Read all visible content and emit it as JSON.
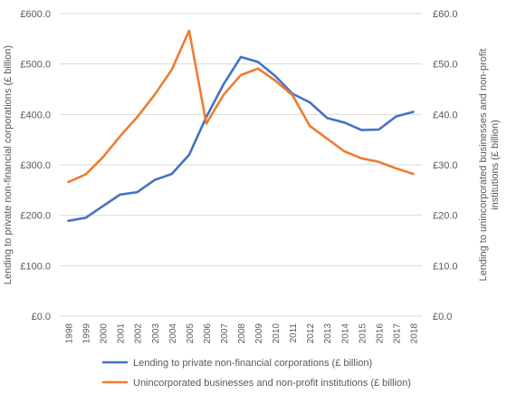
{
  "chart_data": {
    "type": "line",
    "title": "",
    "categories": [
      "1998",
      "1999",
      "2000",
      "2001",
      "2002",
      "2003",
      "2004",
      "2005",
      "2006",
      "2007",
      "2008",
      "2009",
      "2010",
      "2011",
      "2012",
      "2013",
      "2014",
      "2015",
      "2016",
      "2017",
      "2018"
    ],
    "y_left": {
      "label": "Lending to private non-financial corporations (£ billion)",
      "min": 0,
      "max": 600,
      "ticks": [
        0,
        100,
        200,
        300,
        400,
        500,
        600
      ],
      "tick_labels": [
        "£0.0",
        "£100.0",
        "£200.0",
        "£300.0",
        "£400.0",
        "£500.0",
        "£600.0"
      ]
    },
    "y_right": {
      "label": "Lending to unincorporated businesses and non-profit institutions (£ billion)",
      "min": 0,
      "max": 60,
      "ticks": [
        0,
        10,
        20,
        30,
        40,
        50,
        60
      ],
      "tick_labels": [
        "£0.0",
        "£10.0",
        "£20.0",
        "£30.0",
        "£40.0",
        "£50.0",
        "£60.0"
      ]
    },
    "series": [
      {
        "name": "Lending to private non-financial corporations (£ billion)",
        "axis": "left",
        "color": "#4472C4",
        "values": [
          189,
          195,
          218,
          241,
          246,
          270,
          282,
          320,
          395,
          460,
          514,
          504,
          476,
          441,
          424,
          393,
          384,
          369,
          370,
          396,
          405
        ]
      },
      {
        "name": "Unincorporated businesses and non-profit institutions (£ billion)",
        "axis": "right",
        "color": "#ED7D31",
        "values": [
          26.6,
          28.1,
          31.5,
          35.7,
          39.5,
          43.9,
          48.9,
          56.6,
          38.2,
          43.9,
          47.8,
          49.1,
          46.7,
          43.8,
          37.7,
          35.2,
          32.7,
          31.3,
          30.6,
          29.3,
          28.2
        ]
      }
    ],
    "grid": true,
    "legend_position": "bottom"
  }
}
